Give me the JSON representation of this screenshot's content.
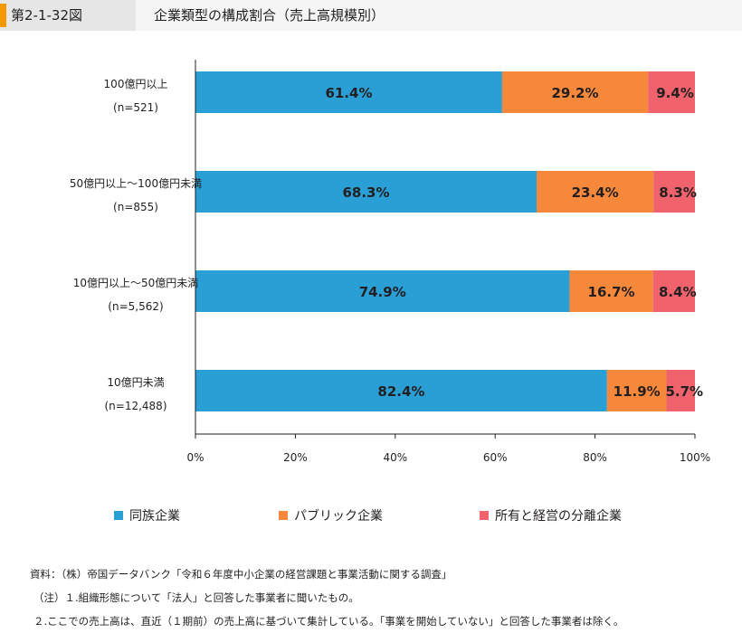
{
  "header": {
    "figure_number": "第2-1-32図",
    "title": "企業類型の構成割合（売上高規模別）"
  },
  "chart_data": {
    "type": "bar",
    "orientation": "horizontal",
    "stacked": true,
    "categories": [
      {
        "label": "100億円以上",
        "n": "(n=521)"
      },
      {
        "label": "50億円以上～100億円未満",
        "n": "(n=855)"
      },
      {
        "label": "10億円以上～50億円未満",
        "n": "(n=5,562)"
      },
      {
        "label": "10億円未満",
        "n": "(n=12,488)"
      }
    ],
    "series": [
      {
        "name": "同族企業",
        "color": "#2a9fd6",
        "values": [
          61.4,
          68.3,
          74.9,
          82.4
        ],
        "labels": [
          "61.4%",
          "68.3%",
          "74.9%",
          "82.4%"
        ]
      },
      {
        "name": "パブリック企業",
        "color": "#f5883b",
        "values": [
          29.2,
          23.4,
          16.7,
          11.9
        ],
        "labels": [
          "29.2%",
          "23.4%",
          "16.7%",
          "11.9%"
        ]
      },
      {
        "name": "所有と経営の分離企業",
        "color": "#f0636c",
        "values": [
          9.4,
          8.3,
          8.4,
          5.7
        ],
        "labels": [
          "9.4%",
          "8.3%",
          "8.4%",
          "5.7%"
        ]
      }
    ],
    "xlim": [
      0,
      100
    ],
    "xticks": [
      "0%",
      "20%",
      "40%",
      "60%",
      "80%",
      "100%"
    ],
    "grid": false,
    "legend_position": "bottom"
  },
  "notes": [
    "資料：（株）帝国データバンク「令和６年度中小企業の経営課題と事業活動に関する調査」",
    "（注）１.組織形態について「法人」と回答した事業者に聞いたもの。",
    "２.ここでの売上高は、直近（１期前）の売上高に基づいて集計している。「事業を開始していない」と回答した事業者は除く。"
  ]
}
